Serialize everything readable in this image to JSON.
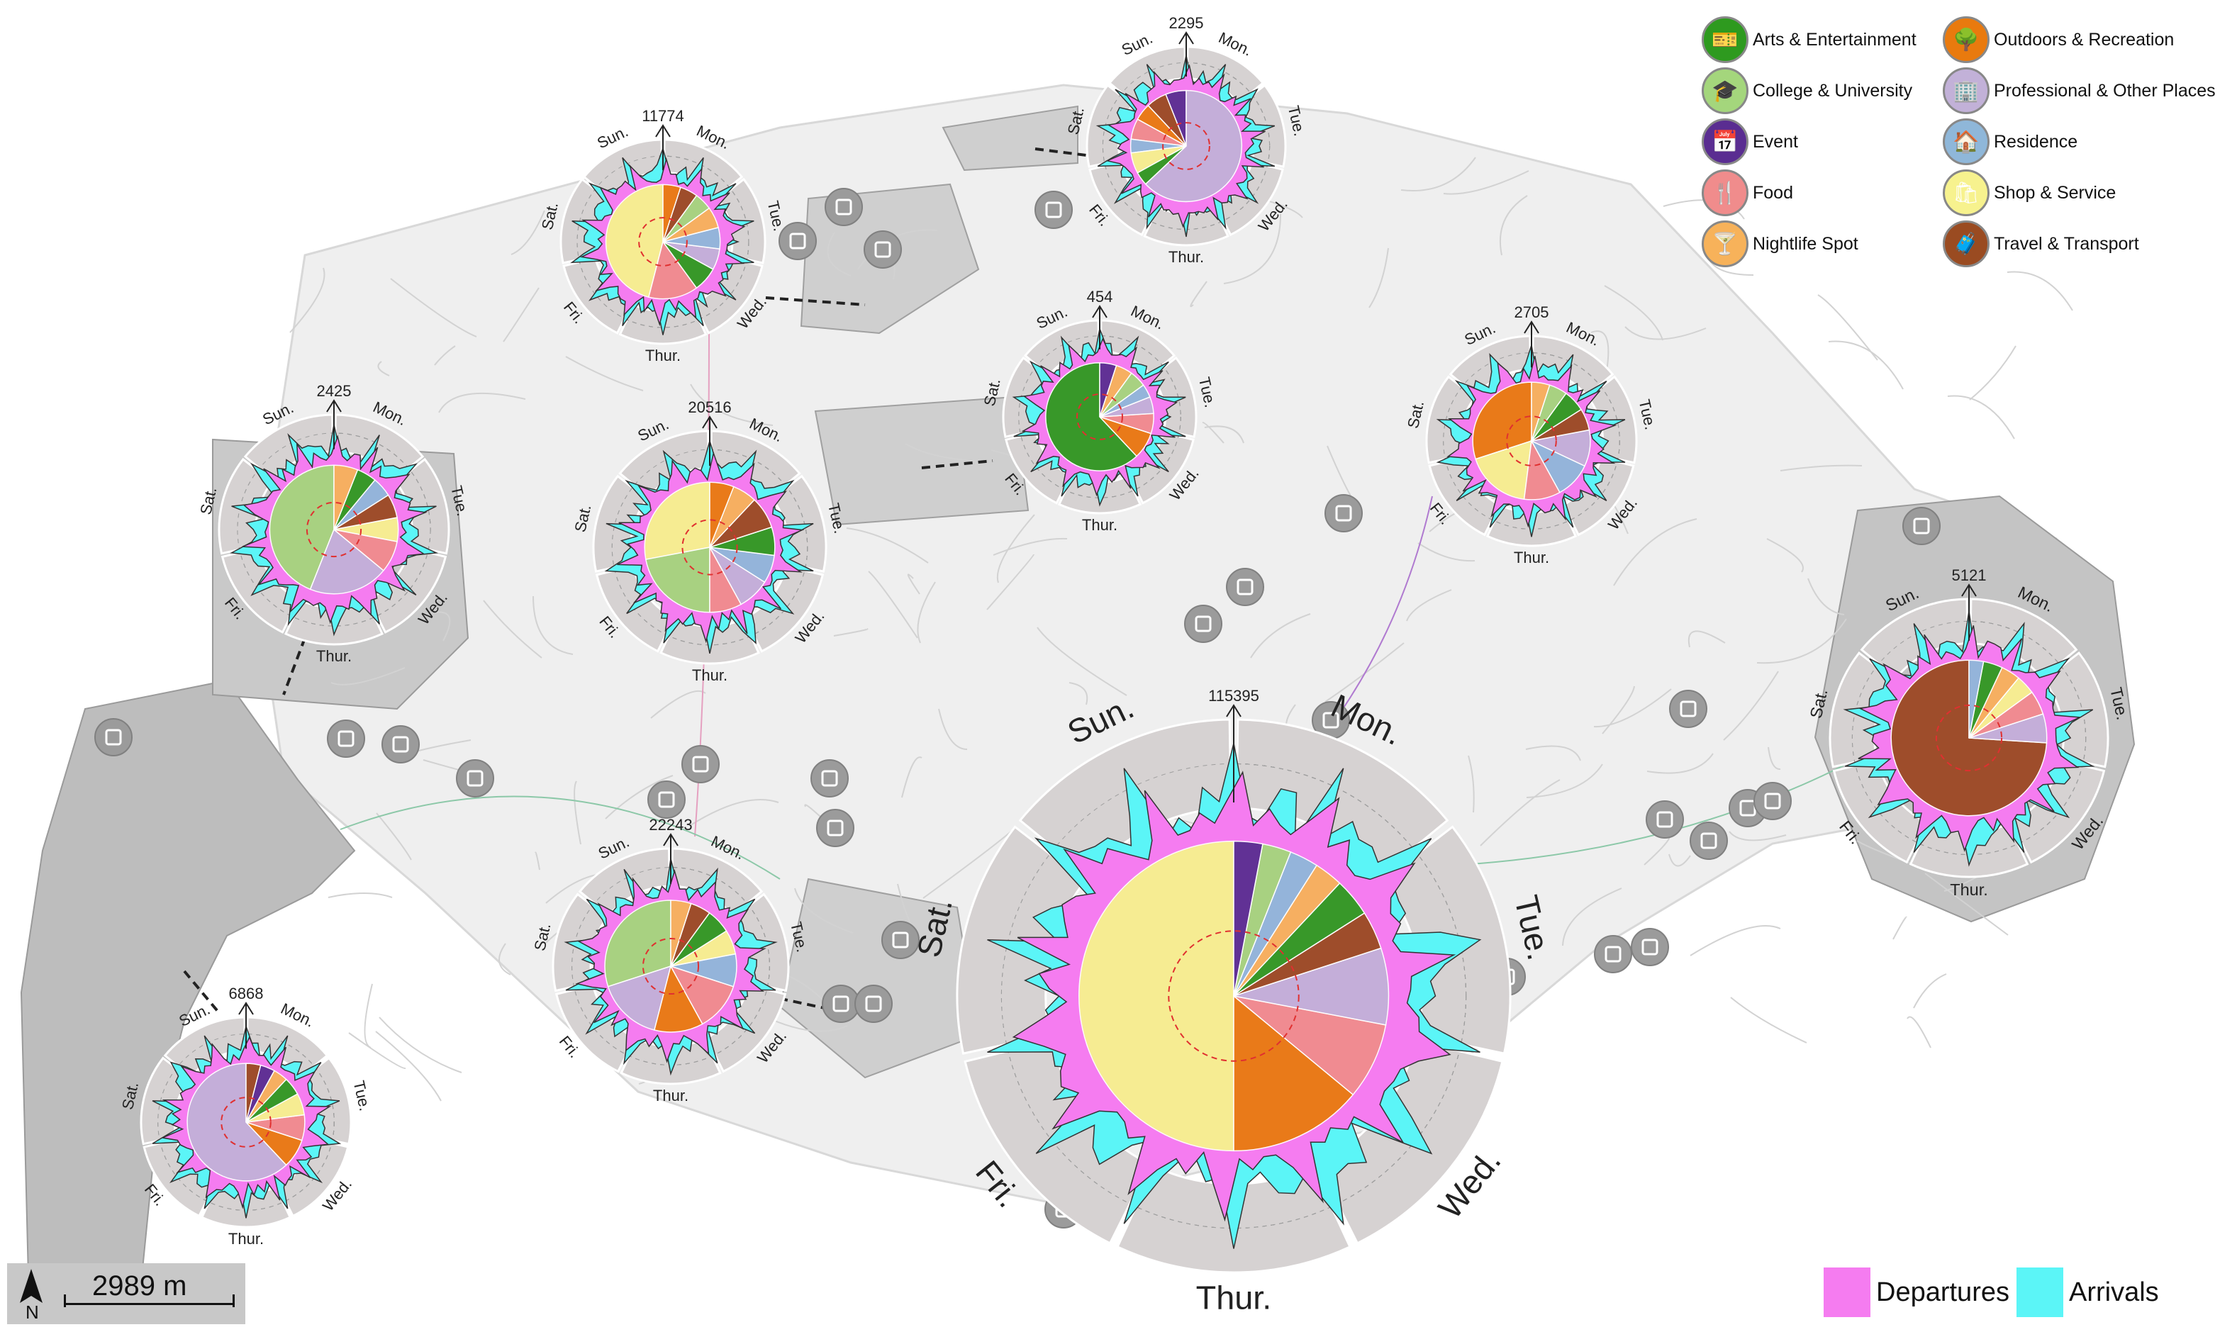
{
  "legend": {
    "categories": [
      {
        "label": "Arts & Entertainment",
        "color": "#2e9a1f",
        "icon": "ticket-icon",
        "glyph": "🎫"
      },
      {
        "label": "College & University",
        "color": "#a4d67c",
        "icon": "graduation-cap-icon",
        "glyph": "🎓"
      },
      {
        "label": "Event",
        "color": "#5a2d91",
        "icon": "calendar-icon",
        "glyph": "📅"
      },
      {
        "label": "Food",
        "color": "#f08c8c",
        "icon": "fork-knife-icon",
        "glyph": "🍴"
      },
      {
        "label": "Nightlife Spot",
        "color": "#f7b25a",
        "icon": "cocktail-icon",
        "glyph": "🍸"
      },
      {
        "label": "Outdoors & Recreation",
        "color": "#e97a0e",
        "icon": "tree-icon",
        "glyph": "🌳"
      },
      {
        "label": "Professional & Other Places",
        "color": "#c2b1d8",
        "icon": "building-icon",
        "glyph": "🏢"
      },
      {
        "label": "Residence",
        "color": "#8fb7d9",
        "icon": "house-icon",
        "glyph": "🏠"
      },
      {
        "label": "Shop & Service",
        "color": "#f7f28e",
        "icon": "shopping-bag-icon",
        "glyph": "🛍"
      },
      {
        "label": "Travel & Transport",
        "color": "#9a4b21",
        "icon": "suitcase-icon",
        "glyph": "🧳"
      }
    ],
    "flows": [
      {
        "label": "Departures",
        "color": "#f57cf0"
      },
      {
        "label": "Arrivals",
        "color": "#5bf5f7"
      }
    ]
  },
  "scale": {
    "label": "2989 m",
    "north": "N"
  },
  "days": [
    "Mon.",
    "Tue.",
    "Wed.",
    "Thur.",
    "Fri.",
    "Sat.",
    "Sun."
  ],
  "glyphs": [
    {
      "count": "2295",
      "pie": [
        [
          "Event",
          6
        ],
        [
          "Travel & Transport",
          6
        ],
        [
          "Outdoors & Recreation",
          5
        ],
        [
          "Food",
          6
        ],
        [
          "Residence",
          4
        ],
        [
          "Shop & Service",
          6
        ],
        [
          "Arts & Entertainment",
          4
        ],
        [
          "Professional & Other Places",
          63
        ]
      ]
    },
    {
      "count": "11774",
      "pie": [
        [
          "Shop & Service",
          46
        ],
        [
          "Food",
          14
        ],
        [
          "Arts & Entertainment",
          7
        ],
        [
          "Professional & Other Places",
          6
        ],
        [
          "Residence",
          6
        ],
        [
          "Nightlife Spot",
          6
        ],
        [
          "College & University",
          5
        ],
        [
          "Travel & Transport",
          5
        ],
        [
          "Outdoors & Recreation",
          5
        ]
      ]
    },
    {
      "count": "454",
      "pie": [
        [
          "Arts & Entertainment",
          62
        ],
        [
          "Outdoors & Recreation",
          8
        ],
        [
          "Food",
          6
        ],
        [
          "Professional & Other Places",
          5
        ],
        [
          "Residence",
          4
        ],
        [
          "College & University",
          5
        ],
        [
          "Nightlife Spot",
          5
        ],
        [
          "Event",
          5
        ]
      ]
    },
    {
      "count": "2705",
      "pie": [
        [
          "Outdoors & Recreation",
          30
        ],
        [
          "Shop & Service",
          18
        ],
        [
          "Food",
          10
        ],
        [
          "Residence",
          10
        ],
        [
          "Professional & Other Places",
          10
        ],
        [
          "Travel & Transport",
          6
        ],
        [
          "Arts & Entertainment",
          6
        ],
        [
          "College & University",
          5
        ],
        [
          "Nightlife Spot",
          5
        ]
      ]
    },
    {
      "count": "2425",
      "pie": [
        [
          "College & University",
          44
        ],
        [
          "Professional & Other Places",
          20
        ],
        [
          "Food",
          8
        ],
        [
          "Shop & Service",
          6
        ],
        [
          "Travel & Transport",
          6
        ],
        [
          "Residence",
          5
        ],
        [
          "Arts & Entertainment",
          5
        ],
        [
          "Nightlife Spot",
          6
        ]
      ]
    },
    {
      "count": "20516",
      "pie": [
        [
          "Shop & Service",
          28
        ],
        [
          "College & University",
          22
        ],
        [
          "Food",
          8
        ],
        [
          "Professional & Other Places",
          8
        ],
        [
          "Residence",
          7
        ],
        [
          "Arts & Entertainment",
          7
        ],
        [
          "Travel & Transport",
          8
        ],
        [
          "Nightlife Spot",
          6
        ],
        [
          "Outdoors & Recreation",
          6
        ]
      ]
    },
    {
      "count": "5121",
      "pie": [
        [
          "Travel & Transport",
          74
        ],
        [
          "Professional & Other Places",
          6
        ],
        [
          "Food",
          5
        ],
        [
          "Shop & Service",
          4
        ],
        [
          "Nightlife Spot",
          4
        ],
        [
          "Arts & Entertainment",
          4
        ],
        [
          "Residence",
          3
        ]
      ]
    },
    {
      "count": "115395",
      "pie": [
        [
          "Shop & Service",
          50
        ],
        [
          "Outdoors & Recreation",
          14
        ],
        [
          "Food",
          8
        ],
        [
          "Professional & Other Places",
          8
        ],
        [
          "Travel & Transport",
          4
        ],
        [
          "Arts & Entertainment",
          4
        ],
        [
          "Nightlife Spot",
          3
        ],
        [
          "Residence",
          3
        ],
        [
          "College & University",
          3
        ],
        [
          "Event",
          3
        ]
      ]
    },
    {
      "count": "22243",
      "pie": [
        [
          "College & University",
          30
        ],
        [
          "Professional & Other Places",
          16
        ],
        [
          "Outdoors & Recreation",
          12
        ],
        [
          "Food",
          12
        ],
        [
          "Residence",
          8
        ],
        [
          "Shop & Service",
          6
        ],
        [
          "Arts & Entertainment",
          6
        ],
        [
          "Travel & Transport",
          5
        ],
        [
          "Nightlife Spot",
          5
        ]
      ]
    },
    {
      "count": "6868",
      "pie": [
        [
          "Professional & Other Places",
          62
        ],
        [
          "Outdoors & Recreation",
          8
        ],
        [
          "Food",
          7
        ],
        [
          "Shop & Service",
          6
        ],
        [
          "Arts & Entertainment",
          5
        ],
        [
          "Nightlife Spot",
          4
        ],
        [
          "Event",
          4
        ],
        [
          "Travel & Transport",
          4
        ]
      ]
    }
  ],
  "poi_icons": [
    "building-icon",
    "house-icon",
    "bus-icon",
    "fork-knife-icon",
    "graduation-cap-icon",
    "calendar-icon",
    "plane-icon",
    "bridge-icon"
  ]
}
